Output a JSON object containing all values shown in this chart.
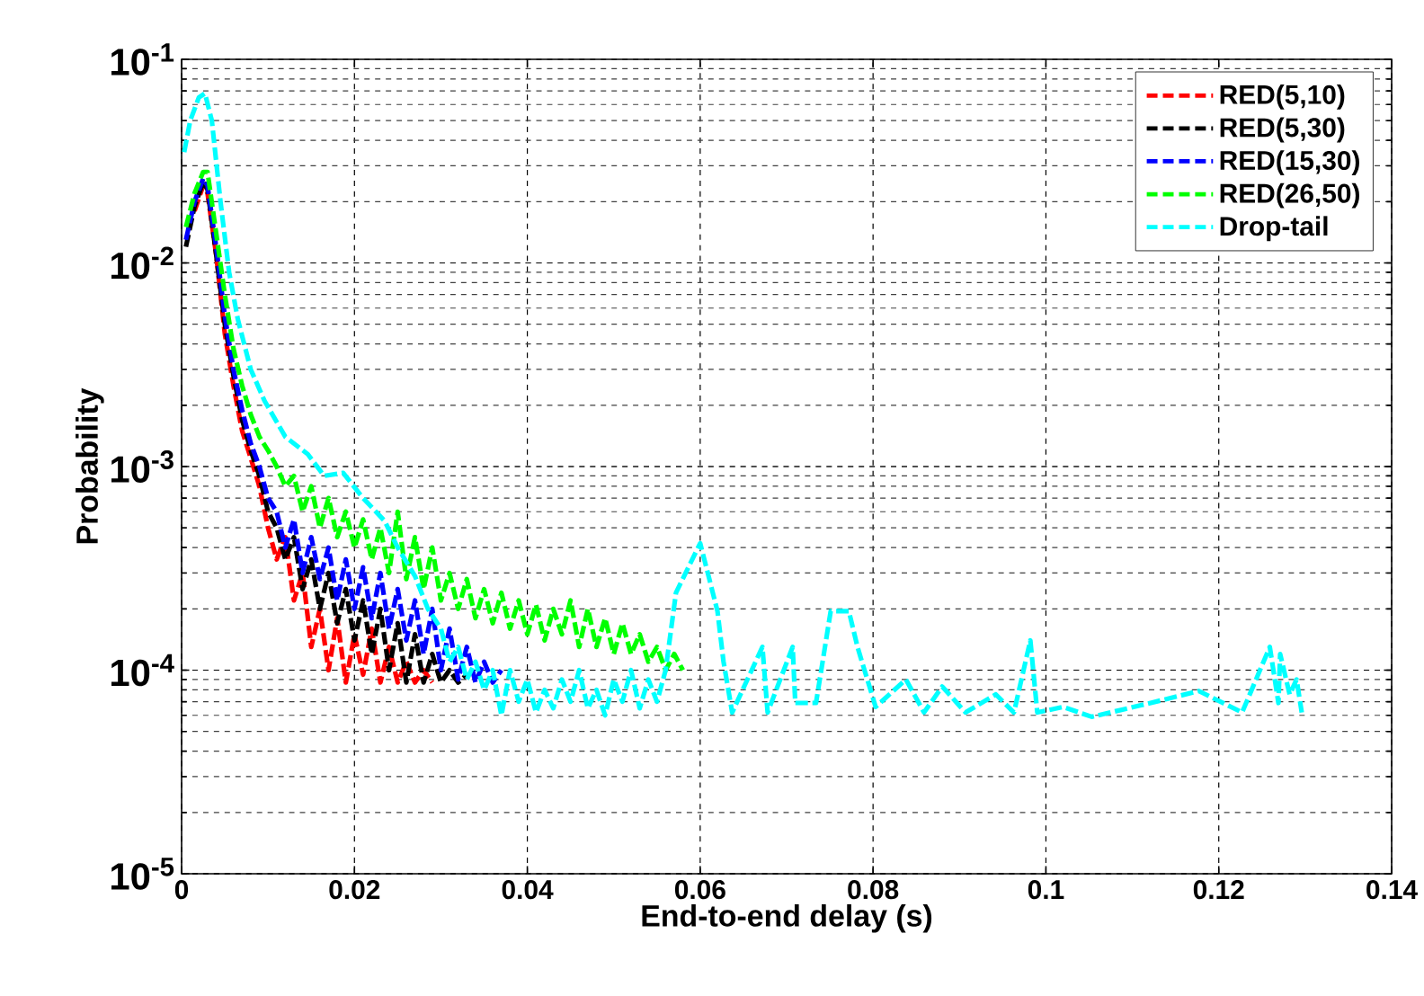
{
  "chart_data": {
    "type": "line",
    "xlabel": "End-to-end delay (s)",
    "ylabel": "Probability",
    "log": "y",
    "grid": true,
    "legend": "top right",
    "line_style": "dashed",
    "marker": "none",
    "xlim": [
      0,
      0.14
    ],
    "xticks": [
      0,
      0.02,
      0.04,
      0.06,
      0.08,
      0.1,
      0.12,
      0.14
    ],
    "ylim": [
      1e-05,
      0.1
    ],
    "yticks": [
      {
        "value": 1e-05,
        "label": "10$^{-5}$"
      },
      {
        "value": 0.0001,
        "label": "10$^{-4}$"
      },
      {
        "value": 0.001,
        "label": "10$^{-3}$"
      },
      {
        "value": 0.01,
        "label": "10$^{-2}$"
      },
      {
        "value": 0.1,
        "label": "10$^{-1}$"
      }
    ],
    "series": [
      {
        "name": "RED(5,10)",
        "color": "#ff0000",
        "x": [
          0.0015,
          0.0025,
          0.003,
          0.004,
          0.005,
          0.006,
          0.007,
          0.008,
          0.009,
          0.01,
          0.011,
          0.012,
          0.013,
          0.014,
          0.015,
          0.016,
          0.017,
          0.018,
          0.019,
          0.02,
          0.021,
          0.022,
          0.023,
          0.024,
          0.025,
          0.026,
          0.027,
          0.028,
          0.029
        ],
        "values": [
          0.018,
          0.024,
          0.022,
          0.011,
          0.0045,
          0.0025,
          0.0015,
          0.0011,
          0.0008,
          0.0005,
          0.00035,
          0.00045,
          0.00022,
          0.0003,
          0.00013,
          0.0002,
          0.0001,
          0.00018,
          8.7e-05,
          0.00015,
          9.5e-05,
          0.00016,
          8.7e-05,
          0.00013,
          8.7e-05,
          0.00011,
          8.7e-05,
          0.0001,
          8.7e-05
        ]
      },
      {
        "name": "RED(5,30)",
        "color": "#000000",
        "x": [
          0.0005,
          0.0015,
          0.0025,
          0.003,
          0.004,
          0.005,
          0.006,
          0.007,
          0.008,
          0.009,
          0.01,
          0.011,
          0.012,
          0.013,
          0.014,
          0.015,
          0.016,
          0.017,
          0.018,
          0.019,
          0.02,
          0.021,
          0.022,
          0.023,
          0.024,
          0.025,
          0.026,
          0.027,
          0.028,
          0.029,
          0.03,
          0.031,
          0.032,
          0.033
        ],
        "values": [
          0.012,
          0.019,
          0.025,
          0.023,
          0.011,
          0.005,
          0.0028,
          0.0017,
          0.0012,
          0.0009,
          0.0006,
          0.0005,
          0.00035,
          0.00045,
          0.00025,
          0.00035,
          0.0002,
          0.0003,
          0.00017,
          0.00025,
          0.00014,
          0.00022,
          0.00012,
          0.0002,
          0.0001,
          0.00017,
          8.7e-05,
          0.00015,
          8.7e-05,
          0.00012,
          8.7e-05,
          0.0001,
          8.7e-05,
          9.5e-05
        ]
      },
      {
        "name": "RED(15,30)",
        "color": "#0000ff",
        "x": [
          0.0005,
          0.0015,
          0.0025,
          0.003,
          0.004,
          0.005,
          0.006,
          0.007,
          0.008,
          0.009,
          0.01,
          0.011,
          0.012,
          0.013,
          0.014,
          0.015,
          0.016,
          0.017,
          0.018,
          0.019,
          0.02,
          0.021,
          0.022,
          0.023,
          0.024,
          0.025,
          0.026,
          0.027,
          0.028,
          0.029,
          0.03,
          0.031,
          0.032,
          0.033,
          0.034,
          0.035,
          0.036,
          0.037
        ],
        "values": [
          0.013,
          0.02,
          0.026,
          0.024,
          0.012,
          0.0055,
          0.003,
          0.0019,
          0.0013,
          0.001,
          0.0007,
          0.0006,
          0.0004,
          0.00055,
          0.0003,
          0.00045,
          0.00028,
          0.0004,
          0.00022,
          0.00035,
          0.0002,
          0.00032,
          0.00018,
          0.0003,
          0.00016,
          0.00025,
          0.00014,
          0.00022,
          0.00012,
          0.0002,
          0.0001,
          0.00016,
          9e-05,
          0.00013,
          8.7e-05,
          0.00011,
          8.7e-05,
          0.0001
        ]
      },
      {
        "name": "RED(26,50)",
        "color": "#00ff00",
        "x": [
          0.0005,
          0.0015,
          0.0025,
          0.003,
          0.004,
          0.005,
          0.006,
          0.007,
          0.008,
          0.009,
          0.01,
          0.011,
          0.012,
          0.013,
          0.014,
          0.015,
          0.016,
          0.017,
          0.018,
          0.019,
          0.02,
          0.021,
          0.022,
          0.023,
          0.024,
          0.025,
          0.026,
          0.027,
          0.028,
          0.029,
          0.03,
          0.031,
          0.032,
          0.033,
          0.034,
          0.035,
          0.036,
          0.037,
          0.038,
          0.039,
          0.04,
          0.041,
          0.042,
          0.043,
          0.044,
          0.045,
          0.046,
          0.047,
          0.048,
          0.049,
          0.05,
          0.051,
          0.052,
          0.053,
          0.054,
          0.055,
          0.056,
          0.057,
          0.058
        ],
        "values": [
          0.015,
          0.022,
          0.028,
          0.028,
          0.014,
          0.007,
          0.0038,
          0.0025,
          0.0018,
          0.0014,
          0.0012,
          0.001,
          0.0008,
          0.0009,
          0.0006,
          0.0008,
          0.0005,
          0.0007,
          0.00045,
          0.0006,
          0.0004,
          0.00055,
          0.00035,
          0.0005,
          0.0003,
          0.0006,
          0.00028,
          0.00045,
          0.00025,
          0.0004,
          0.00022,
          0.0003,
          0.0002,
          0.00028,
          0.00018,
          0.00025,
          0.00017,
          0.00024,
          0.00016,
          0.00022,
          0.00015,
          0.00021,
          0.00014,
          0.0002,
          0.00015,
          0.00022,
          0.00013,
          0.0002,
          0.00013,
          0.00018,
          0.00012,
          0.00017,
          0.00012,
          0.00015,
          0.00011,
          0.00013,
          0.0001,
          0.00012,
          0.0001
        ]
      },
      {
        "name": "Drop-tail",
        "color": "#00ffff",
        "x": [
          0.0003,
          0.001,
          0.002,
          0.0027,
          0.0035,
          0.0045,
          0.0055,
          0.0065,
          0.008,
          0.0096,
          0.012,
          0.0146,
          0.0165,
          0.0187,
          0.021,
          0.0235,
          0.025,
          0.027,
          0.0285,
          0.03,
          0.031,
          0.032,
          0.033,
          0.034,
          0.035,
          0.036,
          0.037,
          0.038,
          0.039,
          0.04,
          0.041,
          0.042,
          0.043,
          0.044,
          0.045,
          0.046,
          0.047,
          0.048,
          0.049,
          0.05,
          0.051,
          0.052,
          0.053,
          0.054,
          0.055,
          0.056,
          0.0572,
          0.06,
          0.062,
          0.0627,
          0.0637,
          0.0672,
          0.0678,
          0.0707,
          0.071,
          0.0734,
          0.0751,
          0.0772,
          0.0782,
          0.0803,
          0.0838,
          0.0859,
          0.088,
          0.0907,
          0.0942,
          0.0963,
          0.0982,
          0.099,
          0.102,
          0.1053,
          0.1115,
          0.1177,
          0.1227,
          0.1259,
          0.1269,
          0.1271,
          0.1282,
          0.129,
          0.1296
        ],
        "values": [
          0.035,
          0.05,
          0.065,
          0.068,
          0.05,
          0.02,
          0.009,
          0.0053,
          0.003,
          0.0021,
          0.0014,
          0.00115,
          0.0009,
          0.00093,
          0.0007,
          0.00054,
          0.0004,
          0.00029,
          0.0002,
          0.00016,
          0.00011,
          0.00013,
          9e-05,
          0.00011,
          8e-05,
          0.0001,
          6e-05,
          0.0001,
          7e-05,
          9e-05,
          6.2e-05,
          8e-05,
          6.5e-05,
          9e-05,
          7e-05,
          0.0001,
          6.5e-05,
          8e-05,
          6e-05,
          9e-05,
          7e-05,
          0.0001,
          6.5e-05,
          9e-05,
          7e-05,
          0.0001,
          0.00024,
          0.00042,
          0.000195,
          0.00011,
          6.2e-05,
          0.00013,
          6.2e-05,
          0.00013,
          6.9e-05,
          6.9e-05,
          0.000195,
          0.000195,
          0.00013,
          6.6e-05,
          9e-05,
          6.2e-05,
          8.3e-05,
          6.2e-05,
          7.6e-05,
          6.2e-05,
          0.00014,
          6.2e-05,
          6.6e-05,
          5.9e-05,
          6.8e-05,
          7.9e-05,
          6.2e-05,
          0.00013,
          6.9e-05,
          0.00012,
          7.6e-05,
          9e-05,
          6.2e-05
        ]
      }
    ]
  }
}
